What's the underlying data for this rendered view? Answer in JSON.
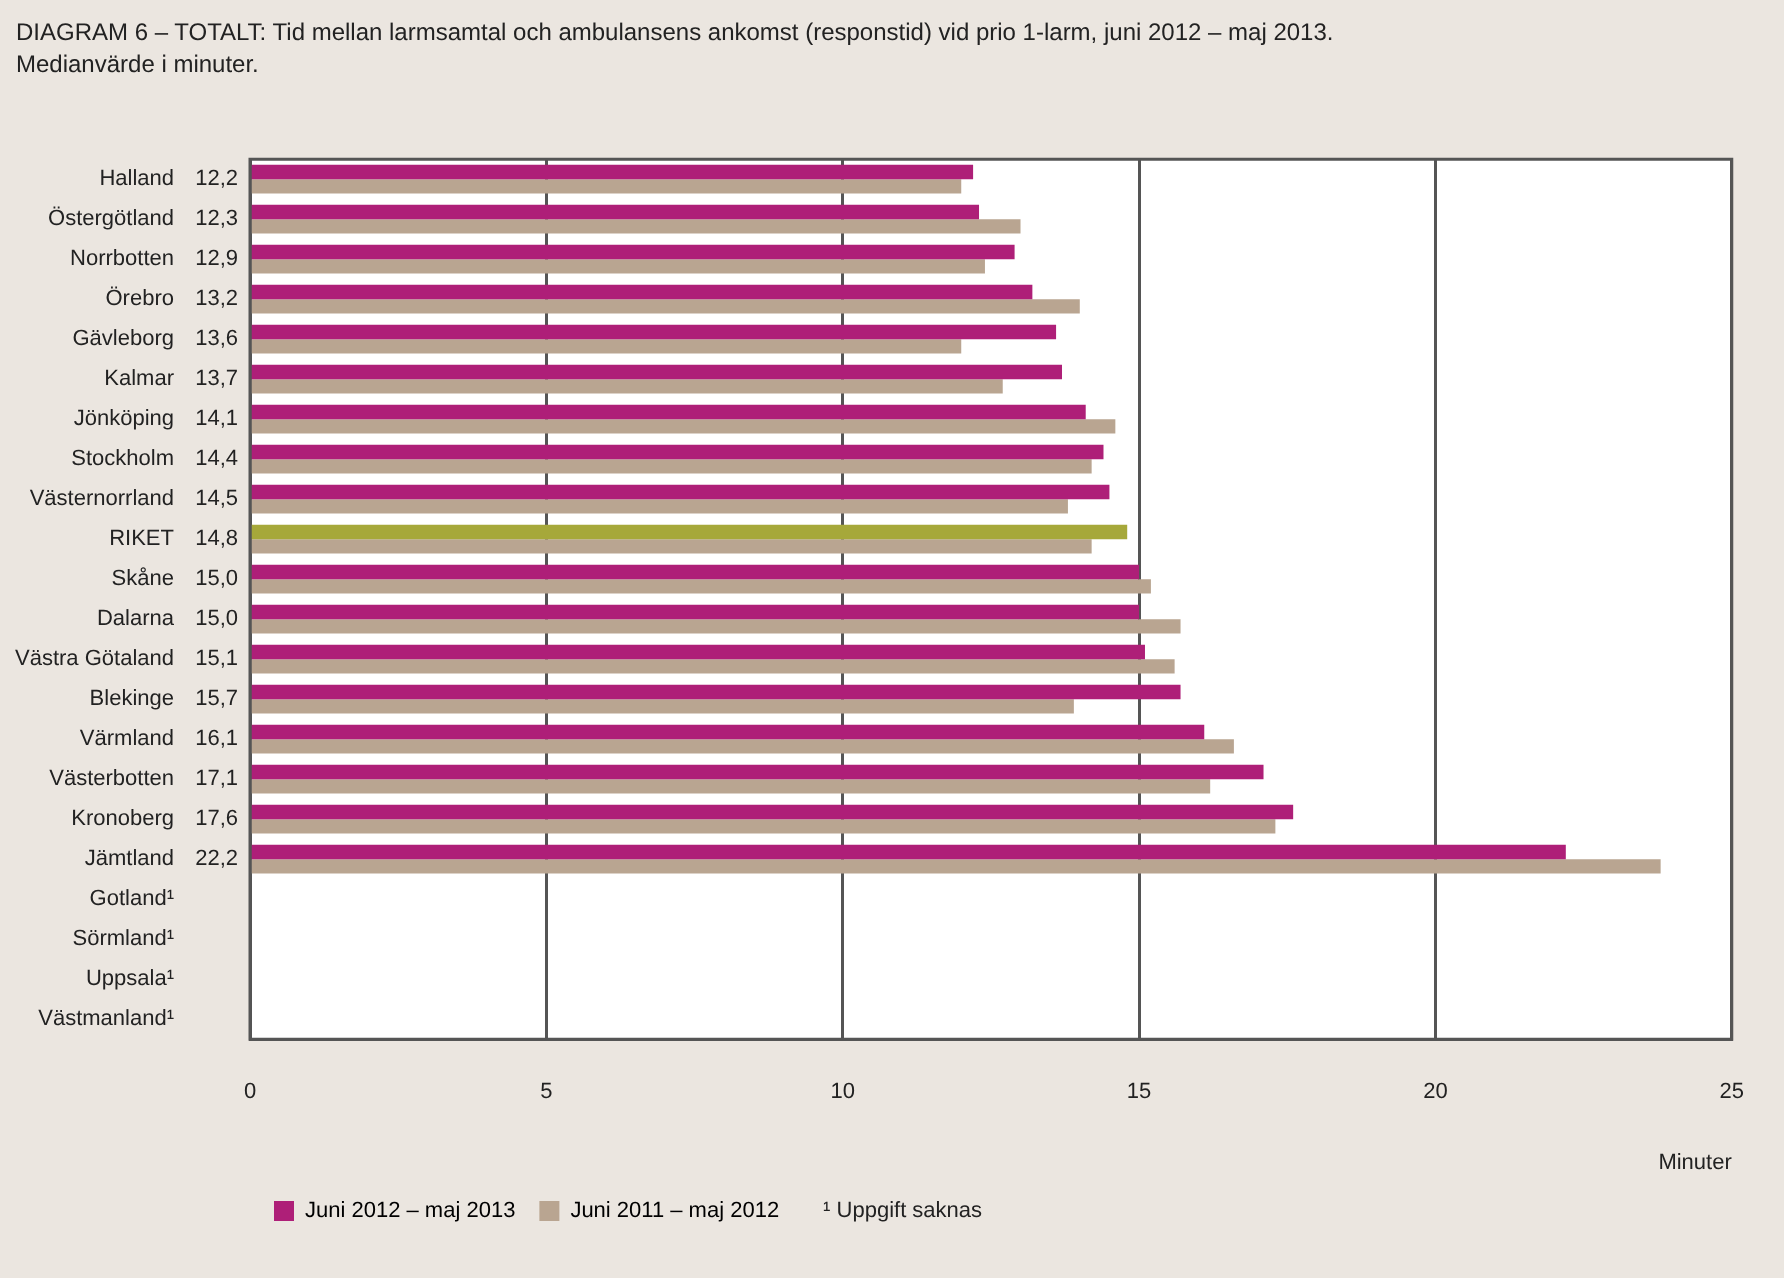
{
  "chart_data": {
    "type": "bar",
    "orientation": "horizontal",
    "title": "DIAGRAM 6 – TOTALT: Tid mellan larmsamtal och ambulansens ankomst (responstid) vid prio 1-larm, juni 2012 – maj 2013.",
    "subtitle": "Medianvärde i minuter.",
    "xlabel": "Minuter",
    "categories": [
      "Halland",
      "Östergötland",
      "Norrbotten",
      "Örebro",
      "Gävleborg",
      "Kalmar",
      "Jönköping",
      "Stockholm",
      "Västernorrland",
      "RIKET",
      "Skåne",
      "Dalarna",
      "Västra Götaland",
      "Blekinge",
      "Värmland",
      "Västerbotten",
      "Kronoberg",
      "Jämtland",
      "Gotland¹",
      "Sörmland¹",
      "Uppsala¹",
      "Västmanland¹"
    ],
    "series": [
      {
        "name": "Juni 2012 – maj 2013",
        "color": "#ae1f78",
        "colors": [
          "#ae1f78",
          "#ae1f78",
          "#ae1f78",
          "#ae1f78",
          "#ae1f78",
          "#ae1f78",
          "#ae1f78",
          "#ae1f78",
          "#ae1f78",
          "#a6a83a",
          "#ae1f78",
          "#ae1f78",
          "#ae1f78",
          "#ae1f78",
          "#ae1f78",
          "#ae1f78",
          "#ae1f78",
          "#ae1f78",
          "#ae1f78",
          "#ae1f78",
          "#ae1f78",
          "#ae1f78"
        ],
        "values": [
          12.2,
          12.3,
          12.9,
          13.2,
          13.6,
          13.7,
          14.1,
          14.4,
          14.5,
          14.8,
          15.0,
          15.0,
          15.1,
          15.7,
          16.1,
          17.1,
          17.6,
          22.2,
          null,
          null,
          null,
          null
        ],
        "value_labels": [
          "12,2",
          "12,3",
          "12,9",
          "13,2",
          "13,6",
          "13,7",
          "14,1",
          "14,4",
          "14,5",
          "14,8",
          "15,0",
          "15,0",
          "15,1",
          "15,7",
          "16,1",
          "17,1",
          "17,6",
          "22,2",
          null,
          null,
          null,
          null
        ]
      },
      {
        "name": "Juni 2011 – maj 2012",
        "color": "#b9a591",
        "values": [
          12.0,
          13.0,
          12.4,
          14.0,
          12.0,
          12.7,
          14.6,
          14.2,
          13.8,
          14.2,
          15.2,
          15.7,
          15.6,
          13.9,
          16.6,
          16.2,
          17.3,
          23.8,
          null,
          null,
          null,
          null
        ]
      }
    ],
    "xlim": [
      0,
      25
    ],
    "xticks": [
      0,
      5,
      10,
      15,
      20,
      25
    ],
    "grid": "x",
    "legend": "bottom left",
    "annotations": [
      "¹ Uppgift saknas"
    ]
  }
}
